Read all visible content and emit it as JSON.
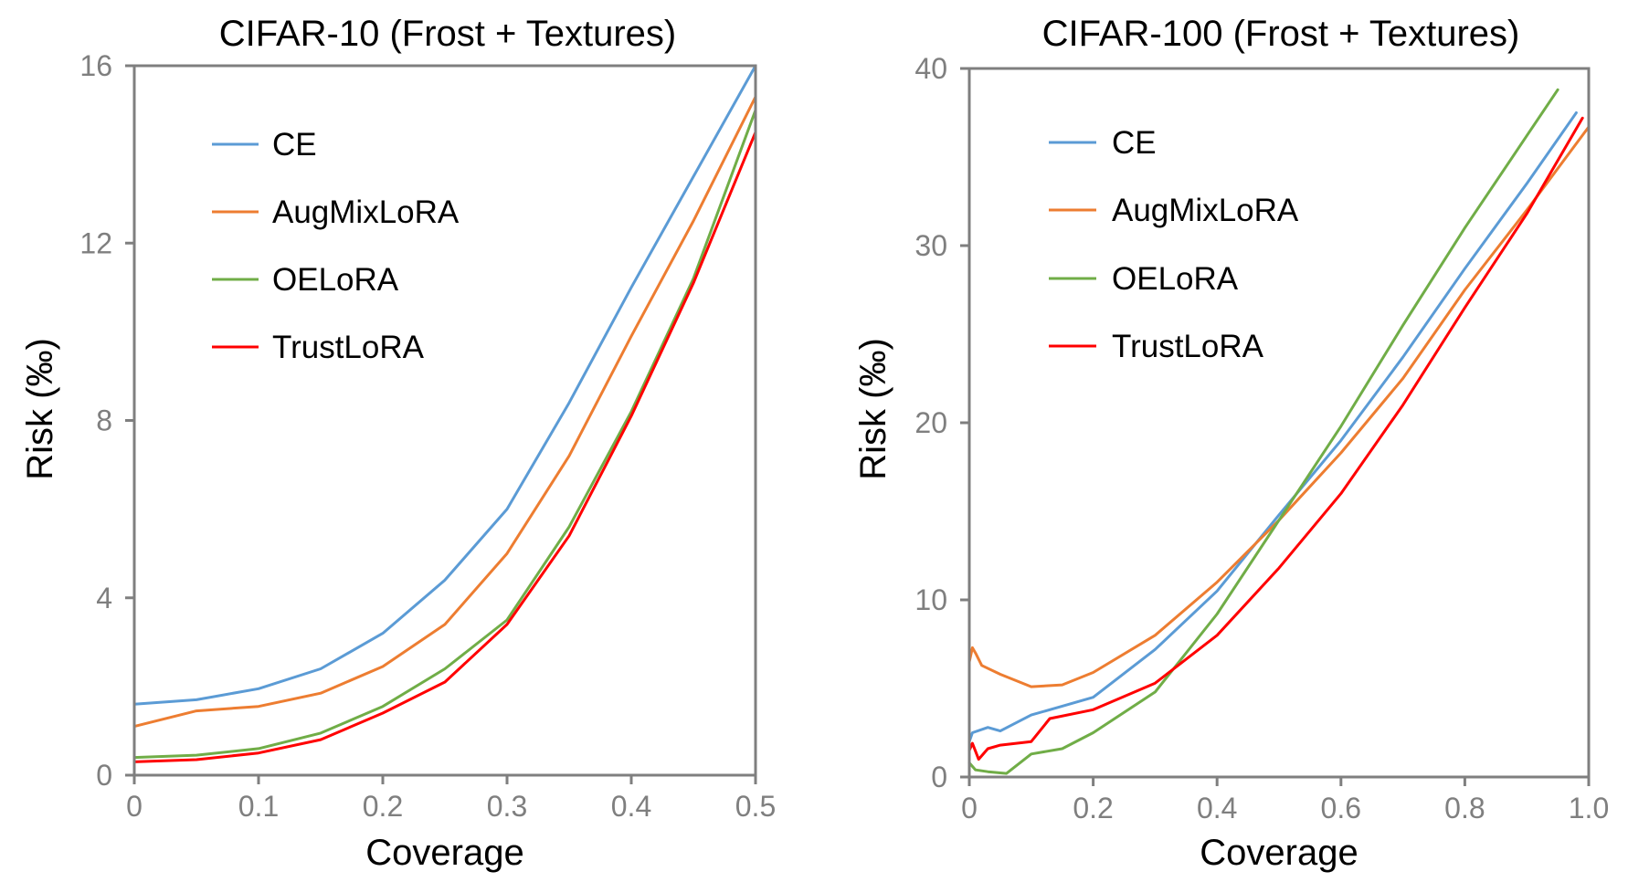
{
  "chart_data": [
    {
      "type": "line",
      "title": "CIFAR-10 (Frost + Textures)",
      "xlabel": "Coverage",
      "ylabel": "Risk (‰)",
      "xlim": [
        0,
        0.5
      ],
      "ylim": [
        0,
        16
      ],
      "xticks": [
        0,
        0.1,
        0.2,
        0.3,
        0.4,
        0.5
      ],
      "xtick_labels": [
        "0",
        "0.1",
        "0.2",
        "0.3",
        "0.4",
        "0.5"
      ],
      "yticks": [
        0,
        4,
        8,
        12,
        16
      ],
      "ytick_labels": [
        "0",
        "4",
        "8",
        "12",
        "16"
      ],
      "legend_position": "top-left",
      "grid": false,
      "series": [
        {
          "name": "CE",
          "color": "#5b9bd5",
          "x": [
            0,
            0.05,
            0.1,
            0.15,
            0.2,
            0.25,
            0.3,
            0.35,
            0.4,
            0.45,
            0.5
          ],
          "y": [
            1.6,
            1.7,
            1.95,
            2.4,
            3.2,
            4.4,
            6.0,
            8.4,
            11.0,
            13.5,
            16.0
          ]
        },
        {
          "name": "AugMixLoRA",
          "color": "#ed7d31",
          "x": [
            0,
            0.05,
            0.1,
            0.15,
            0.2,
            0.25,
            0.3,
            0.35,
            0.4,
            0.45,
            0.5
          ],
          "y": [
            1.1,
            1.45,
            1.55,
            1.85,
            2.45,
            3.4,
            5.0,
            7.2,
            9.9,
            12.5,
            15.3
          ]
        },
        {
          "name": "OELoRA",
          "color": "#70ad47",
          "x": [
            0,
            0.05,
            0.1,
            0.15,
            0.2,
            0.25,
            0.3,
            0.35,
            0.4,
            0.45,
            0.5
          ],
          "y": [
            0.4,
            0.45,
            0.6,
            0.95,
            1.55,
            2.4,
            3.5,
            5.6,
            8.2,
            11.2,
            15.0
          ]
        },
        {
          "name": "TrustLoRA",
          "color": "#ff0000",
          "x": [
            0,
            0.05,
            0.1,
            0.15,
            0.2,
            0.25,
            0.3,
            0.35,
            0.4,
            0.45,
            0.5
          ],
          "y": [
            0.3,
            0.35,
            0.5,
            0.8,
            1.4,
            2.1,
            3.4,
            5.4,
            8.1,
            11.1,
            14.5
          ]
        }
      ]
    },
    {
      "type": "line",
      "title": "CIFAR-100 (Frost + Textures)",
      "xlabel": "Coverage",
      "ylabel": "Risk (‰)",
      "xlim": [
        0,
        1.0
      ],
      "ylim": [
        0,
        40
      ],
      "xticks": [
        0,
        0.2,
        0.4,
        0.6,
        0.8,
        1.0
      ],
      "xtick_labels": [
        "0",
        "0.2",
        "0.4",
        "0.6",
        "0.8",
        "1.0"
      ],
      "yticks": [
        0,
        10,
        20,
        30,
        40
      ],
      "ytick_labels": [
        "0",
        "10",
        "20",
        "30",
        "40"
      ],
      "legend_position": "top-left",
      "grid": false,
      "series": [
        {
          "name": "CE",
          "color": "#5b9bd5",
          "x": [
            0,
            0.005,
            0.03,
            0.05,
            0.1,
            0.15,
            0.2,
            0.3,
            0.4,
            0.5,
            0.6,
            0.7,
            0.8,
            0.9,
            0.98
          ],
          "y": [
            2.0,
            2.5,
            2.8,
            2.6,
            3.5,
            4.0,
            4.5,
            7.2,
            10.5,
            14.8,
            19.0,
            23.7,
            28.7,
            33.5,
            37.5
          ]
        },
        {
          "name": "AugMixLoRA",
          "color": "#ed7d31",
          "x": [
            0,
            0.005,
            0.01,
            0.02,
            0.05,
            0.1,
            0.15,
            0.2,
            0.3,
            0.4,
            0.5,
            0.6,
            0.7,
            0.8,
            0.9,
            1.0
          ],
          "y": [
            6.5,
            7.3,
            7.0,
            6.3,
            5.8,
            5.1,
            5.2,
            5.9,
            8.0,
            11.0,
            14.5,
            18.3,
            22.5,
            27.5,
            32.0,
            36.7
          ]
        },
        {
          "name": "OELoRA",
          "color": "#70ad47",
          "x": [
            0,
            0.01,
            0.03,
            0.06,
            0.1,
            0.15,
            0.2,
            0.3,
            0.4,
            0.5,
            0.6,
            0.7,
            0.8,
            0.9,
            0.95
          ],
          "y": [
            0.8,
            0.4,
            0.3,
            0.2,
            1.3,
            1.6,
            2.5,
            4.8,
            9.2,
            14.5,
            19.8,
            25.5,
            31.0,
            36.2,
            38.8
          ]
        },
        {
          "name": "TrustLoRA",
          "color": "#ff0000",
          "x": [
            0,
            0.005,
            0.015,
            0.03,
            0.05,
            0.1,
            0.13,
            0.2,
            0.3,
            0.4,
            0.5,
            0.6,
            0.7,
            0.8,
            0.9,
            0.99
          ],
          "y": [
            1.5,
            1.9,
            1.0,
            1.6,
            1.8,
            2.0,
            3.3,
            3.8,
            5.3,
            8.0,
            11.8,
            16.0,
            21.0,
            26.5,
            31.8,
            37.2
          ]
        }
      ]
    }
  ]
}
